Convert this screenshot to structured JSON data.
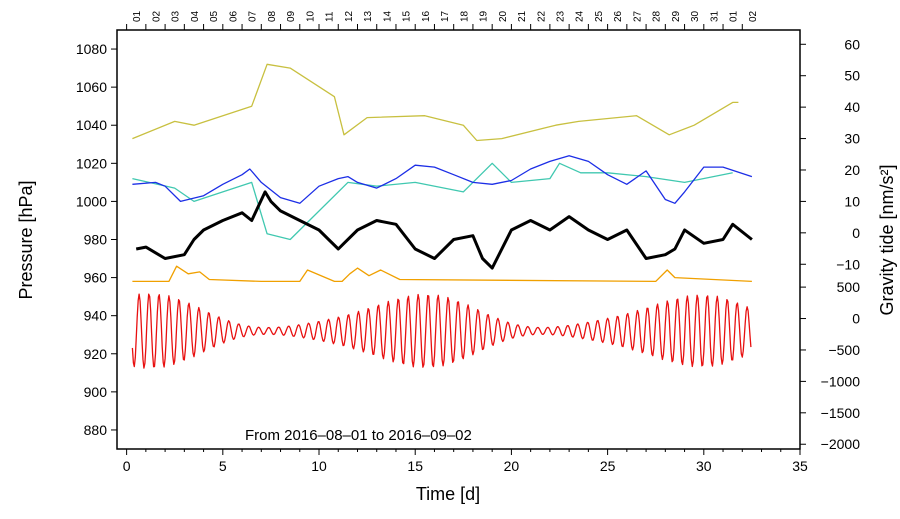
{
  "chart_data": {
    "type": "line",
    "annotation": "From 2016–08–01 to 2016–09–02",
    "xlabel": "Time [d]",
    "ylabel_left": "Pressure [hPa]",
    "ylabel_right": "Gravity tide [nm/s²]",
    "xlim": [
      -0.5,
      35
    ],
    "ylim": [
      870,
      1090
    ],
    "x_ticks": [
      0,
      5,
      10,
      15,
      20,
      25,
      30,
      35
    ],
    "y_ticks_left": [
      880,
      900,
      920,
      940,
      960,
      980,
      1000,
      1020,
      1040,
      1060,
      1080
    ],
    "top_day_labels": [
      "01",
      "02",
      "03",
      "04",
      "05",
      "06",
      "07",
      "08",
      "09",
      "10",
      "11",
      "12",
      "13",
      "14",
      "15",
      "16",
      "17",
      "18",
      "19",
      "20",
      "21",
      "22",
      "23",
      "24",
      "25",
      "26",
      "27",
      "28",
      "29",
      "30",
      "31",
      "01",
      "02"
    ],
    "right_upper_axis": {
      "ticks": [
        60,
        50,
        40,
        30,
        20,
        10,
        0,
        -10
      ],
      "pressure_at_ticks": [
        1082.5,
        1066,
        1049.5,
        1033,
        1016.5,
        1000,
        983.5,
        967
      ]
    },
    "right_lower_axis": {
      "ticks": [
        500,
        0,
        -500,
        -1000,
        -1500,
        -2000
      ],
      "pressure_at_ticks": [
        955,
        938.5,
        922,
        905.5,
        889,
        872.5
      ]
    },
    "series": [
      {
        "name": "olive",
        "color": "#c8c040",
        "x": [
          0.3,
          2.5,
          3.5,
          6.5,
          7.3,
          8.5,
          10.8,
          11.3,
          12.5,
          15.5,
          17.5,
          18.2,
          19.5,
          22.3,
          23.5,
          26.5,
          28.2,
          29.5,
          31.5,
          31.8
        ],
        "y": [
          1033,
          1042,
          1040,
          1050,
          1072,
          1070,
          1055,
          1035,
          1044,
          1045,
          1040,
          1032,
          1033,
          1040,
          1042,
          1045,
          1035,
          1040,
          1052,
          1052
        ]
      },
      {
        "name": "teal",
        "color": "#40c8b0",
        "x": [
          0.3,
          2.5,
          3.5,
          5,
          6.5,
          7.3,
          8.5,
          9.5,
          11.5,
          13,
          15,
          17.5,
          19,
          20,
          22,
          22.5,
          23.6,
          25,
          27,
          29,
          31.5
        ],
        "y": [
          1012,
          1007,
          1000,
          1005,
          1010,
          983,
          980,
          990,
          1010,
          1008,
          1010,
          1005,
          1020,
          1010,
          1012,
          1020,
          1015,
          1015,
          1013,
          1010,
          1015
        ]
      },
      {
        "name": "blue",
        "color": "#1c2ee6",
        "x": [
          0.3,
          1.5,
          2,
          2.8,
          4,
          5,
          6,
          6.4,
          7,
          8,
          9,
          10,
          11,
          11.5,
          12,
          13,
          14,
          15,
          16,
          17,
          18,
          19,
          20,
          21,
          22,
          23,
          24,
          25,
          26,
          27,
          28,
          28.5,
          29,
          30,
          31,
          32.5
        ],
        "y": [
          1009,
          1010,
          1008,
          1000,
          1003,
          1009,
          1014,
          1017,
          1010,
          1002,
          999,
          1008,
          1012,
          1013,
          1010,
          1007,
          1012,
          1019,
          1018,
          1014,
          1010,
          1009,
          1011,
          1017,
          1021,
          1024,
          1021,
          1014,
          1009,
          1016,
          1001,
          999,
          1005,
          1018,
          1018,
          1013
        ]
      },
      {
        "name": "black",
        "color": "#000000",
        "x": [
          0.5,
          1,
          2,
          3,
          3.5,
          4,
          5,
          6,
          6.5,
          7.2,
          7.5,
          8,
          9,
          10,
          10.5,
          11,
          11.3,
          12,
          13,
          14,
          15,
          16,
          17,
          18,
          18.5,
          19,
          20,
          21,
          22,
          23,
          24,
          25,
          26,
          27,
          28,
          28.5,
          29,
          30,
          31,
          31.5,
          32.5
        ],
        "y": [
          975,
          976,
          970,
          972,
          980,
          985,
          990,
          994,
          990,
          1005,
          1000,
          995,
          990,
          985,
          980,
          975,
          978,
          985,
          990,
          988,
          975,
          970,
          980,
          982,
          970,
          965,
          985,
          990,
          985,
          992,
          985,
          980,
          985,
          970,
          972,
          975,
          985,
          978,
          980,
          988,
          980
        ]
      },
      {
        "name": "orange",
        "color": "#f0a000",
        "x": [
          0.3,
          2.2,
          2.6,
          3.2,
          3.8,
          4.3,
          7.0,
          7.4,
          9.0,
          9.4,
          10.8,
          11.2,
          11.6,
          12.0,
          12.6,
          13.2,
          14.2,
          27.5,
          28.1,
          28.5,
          32.5
        ],
        "y": [
          958,
          958,
          966,
          962,
          963,
          959,
          958,
          958,
          958,
          964,
          958,
          958,
          962,
          965,
          961,
          964,
          959,
          958,
          964,
          960,
          958
        ]
      },
      {
        "name": "red",
        "color": "#e81010",
        "x": [
          0.3,
          32.5
        ],
        "y": [
          935,
          935
        ]
      }
    ]
  }
}
